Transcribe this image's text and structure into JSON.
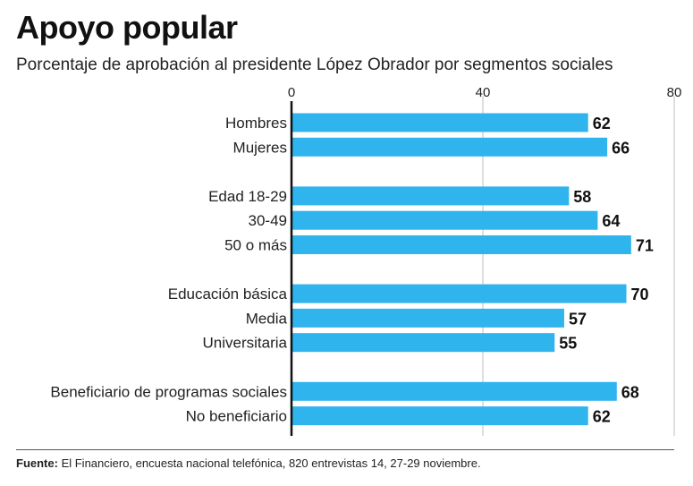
{
  "title": "Apoyo popular",
  "subtitle": "Porcentaje de aprobación al presidente López Obrador por segmentos sociales",
  "footer": {
    "source_label": "Fuente:",
    "source_text": " El Financiero, encuesta nacional telefónica, 820 entrevistas 14, 27-29 noviembre."
  },
  "colors": {
    "bar": "#2fb4ee",
    "axis": "#111111",
    "grid": "#bfbfbf"
  },
  "chart_data": {
    "type": "bar",
    "orientation": "horizontal",
    "title": "Apoyo popular",
    "subtitle": "Porcentaje de aprobación al presidente López Obrador por segmentos sociales",
    "xlim": [
      0,
      80
    ],
    "xticks": [
      "0",
      "40",
      "80"
    ],
    "grid": true,
    "groups": [
      {
        "categories": [
          "Hombres",
          "Mujeres"
        ],
        "values": [
          62,
          66
        ]
      },
      {
        "categories": [
          "Edad 18-29",
          "30-49",
          "50 o más"
        ],
        "values": [
          58,
          64,
          71
        ]
      },
      {
        "categories": [
          "Educación básica",
          "Media",
          "Universitaria"
        ],
        "values": [
          70,
          57,
          55
        ]
      },
      {
        "categories": [
          "Beneficiario de programas sociales",
          "No beneficiario"
        ],
        "values": [
          68,
          62
        ]
      }
    ]
  }
}
